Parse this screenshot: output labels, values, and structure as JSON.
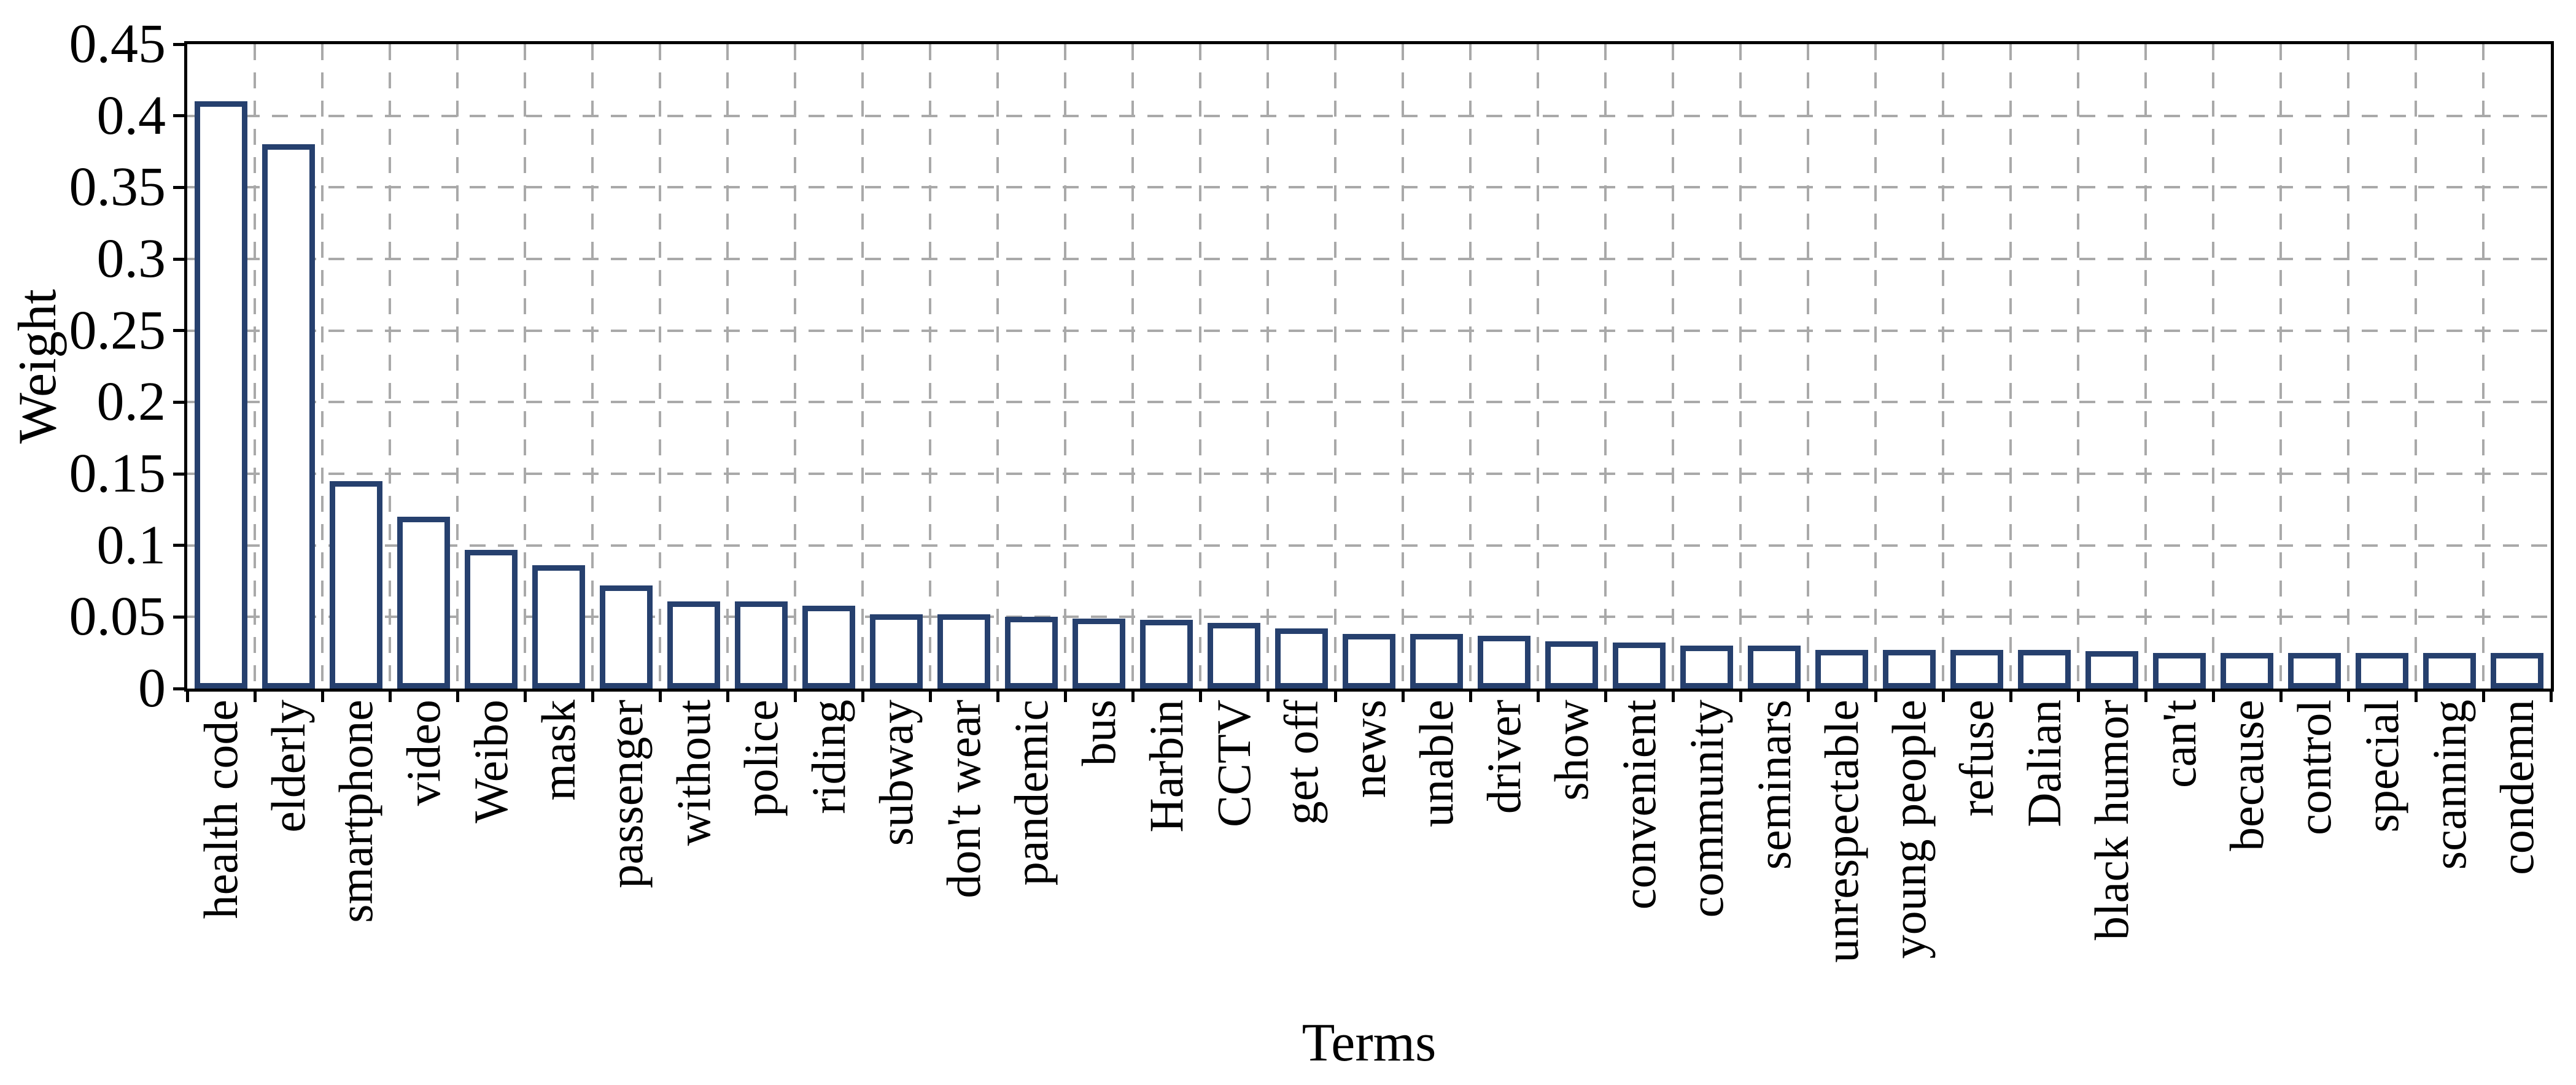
{
  "chart_data": {
    "type": "bar",
    "title": "",
    "xlabel": "Terms",
    "ylabel": "Weight",
    "ylim": [
      0,
      0.45
    ],
    "ytick_step": 0.05,
    "ytick_labels": [
      "0",
      "0.05",
      "0.1",
      "0.15",
      "0.2",
      "0.25",
      "0.3",
      "0.35",
      "0.4",
      "0.45"
    ],
    "grid": "dashed horizontal and vertical gridlines, gray",
    "legend": "none",
    "bar_fill_color": "#ffffff",
    "bar_border_color": "#26406e",
    "gridline_color": "#a9a9a9",
    "axis_color": "#000000",
    "categories": [
      "health code",
      "elderly",
      "smartphone",
      "video",
      "Weibo",
      "mask",
      "passenger",
      "without",
      "police",
      "riding",
      "subway",
      "don't wear",
      "pandemic",
      "bus",
      "Harbin",
      "CCTV",
      "get off",
      "news",
      "unable",
      "driver",
      "show",
      "convenient",
      "community",
      "seminars",
      "unrespectable",
      "young people",
      "refuse",
      "Dalian",
      "black humor",
      "can't",
      "because",
      "control",
      "special",
      "scanning",
      "condemn"
    ],
    "values": [
      0.41,
      0.38,
      0.145,
      0.12,
      0.097,
      0.086,
      0.072,
      0.061,
      0.061,
      0.058,
      0.052,
      0.052,
      0.05,
      0.049,
      0.048,
      0.046,
      0.042,
      0.038,
      0.038,
      0.037,
      0.033,
      0.032,
      0.03,
      0.03,
      0.027,
      0.027,
      0.027,
      0.027,
      0.026,
      0.025,
      0.025,
      0.025,
      0.025,
      0.025,
      0.025
    ]
  }
}
